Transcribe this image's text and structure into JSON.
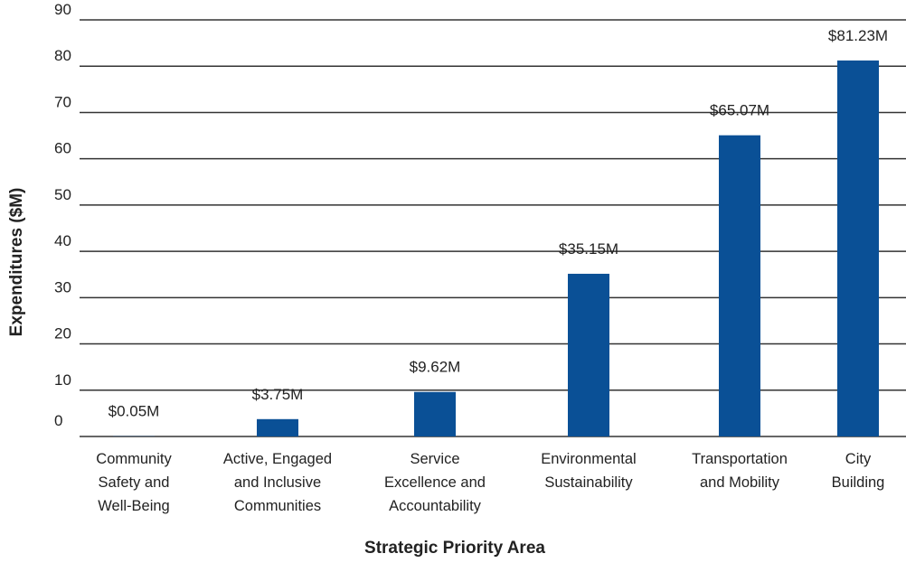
{
  "chart_data": {
    "type": "bar",
    "x_label": "Strategic Priority Area",
    "y_label": "Expenditures ($M)",
    "categories": [
      "Community Safety and Well-Being",
      "Active, Engaged and Inclusive Communities",
      "Service Excellence and Accountability",
      "Environmental Sustainability",
      "Transportation and Mobility",
      "City Building"
    ],
    "values": [
      0.05,
      3.75,
      9.62,
      35.15,
      65.07,
      81.23
    ],
    "value_labels": [
      "$0.05M",
      "$3.75M",
      "$9.62M",
      "$35.15M",
      "$65.07M",
      "$81.23M"
    ],
    "color": "#0a5096",
    "ylim": [
      0,
      90
    ],
    "yticks": [
      0,
      10,
      20,
      30,
      40,
      50,
      60,
      70,
      80,
      90
    ],
    "grid": true
  }
}
